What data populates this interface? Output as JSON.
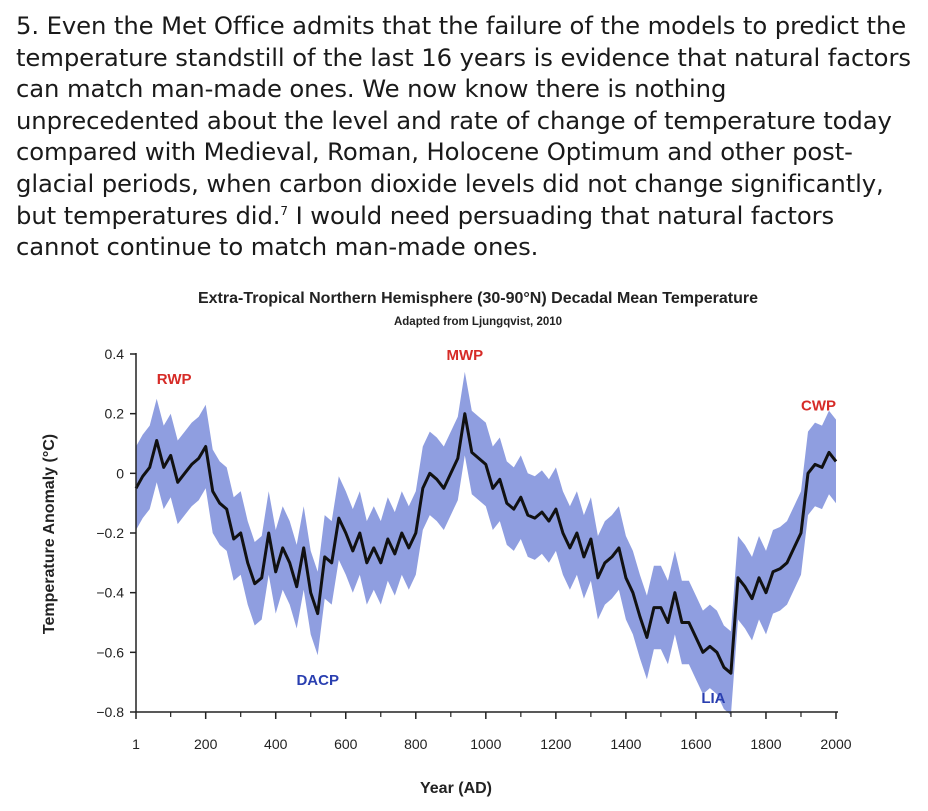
{
  "paragraph": {
    "number": "5.",
    "text_before_note": "Even the Met Office admits that the failure of the models to predict the temperature standstill of the last 16 years is evidence that natural factors can match man-made ones. We now know there is nothing unprecedented about the level and rate of change of temperature today compared with Medieval, Roman, Holocene Optimum and other post-glacial periods, when carbon dioxide levels did not change significantly, but temperatures did.",
    "footnote": "7",
    "text_after_note": " I would need persuading that natural factors cannot continue to match man-made ones."
  },
  "chart_data": {
    "type": "area",
    "title": "Extra-Tropical Northern Hemisphere (30-90°N) Decadal Mean Temperature",
    "subtitle": "Adapted from Ljungqvist, 2010",
    "xlabel": "Year (AD)",
    "ylabel": "Temperature Anomaly (°C)",
    "xlim": [
      1,
      2000
    ],
    "ylim": [
      -0.8,
      0.4
    ],
    "x_ticks": [
      1,
      200,
      400,
      600,
      800,
      1000,
      1200,
      1400,
      1600,
      1800,
      2000
    ],
    "x_tick_labels": [
      "1",
      "200",
      "400",
      "600",
      "800",
      "1000",
      "1200",
      "1400",
      "1600",
      "1800",
      "2000"
    ],
    "y_ticks": [
      -0.8,
      -0.6,
      -0.4,
      -0.2,
      0,
      0.2,
      0.4
    ],
    "y_tick_labels": [
      "−0.8",
      "−0.6",
      "−0.4",
      "−0.2",
      "0",
      "0.2",
      "0.4"
    ],
    "colors": {
      "line": "#111111",
      "band": "#8f9ee0",
      "warm_label": "#d62b27",
      "cool_label": "#2a3fb0"
    },
    "annotations": [
      {
        "text": "RWP",
        "x": 110,
        "y": 0.3,
        "color": "red"
      },
      {
        "text": "DACP",
        "x": 520,
        "y": -0.71,
        "color": "blue"
      },
      {
        "text": "MWP",
        "x": 940,
        "y": 0.38,
        "color": "red"
      },
      {
        "text": "LIA",
        "x": 1650,
        "y": -0.77,
        "color": "blue"
      },
      {
        "text": "CWP",
        "x": 1950,
        "y": 0.21,
        "color": "red"
      }
    ],
    "series": [
      {
        "name": "Decadal mean temperature",
        "x": [
          1,
          20,
          40,
          60,
          80,
          100,
          120,
          140,
          160,
          180,
          200,
          220,
          240,
          260,
          280,
          300,
          320,
          340,
          360,
          380,
          400,
          420,
          440,
          460,
          480,
          500,
          520,
          540,
          560,
          580,
          600,
          620,
          640,
          660,
          680,
          700,
          720,
          740,
          760,
          780,
          800,
          820,
          840,
          860,
          880,
          900,
          920,
          940,
          960,
          980,
          1000,
          1020,
          1040,
          1060,
          1080,
          1100,
          1120,
          1140,
          1160,
          1180,
          1200,
          1220,
          1240,
          1260,
          1280,
          1300,
          1320,
          1340,
          1360,
          1380,
          1400,
          1420,
          1440,
          1460,
          1480,
          1500,
          1520,
          1540,
          1560,
          1580,
          1600,
          1620,
          1640,
          1660,
          1680,
          1700,
          1720,
          1740,
          1760,
          1780,
          1800,
          1820,
          1840,
          1860,
          1880,
          1900,
          1920,
          1940,
          1960,
          1980,
          2000
        ],
        "values": [
          -0.05,
          -0.01,
          0.02,
          0.11,
          0.02,
          0.06,
          -0.03,
          0.0,
          0.03,
          0.05,
          0.09,
          -0.06,
          -0.1,
          -0.12,
          -0.22,
          -0.2,
          -0.3,
          -0.37,
          -0.35,
          -0.2,
          -0.33,
          -0.25,
          -0.3,
          -0.38,
          -0.25,
          -0.4,
          -0.47,
          -0.28,
          -0.3,
          -0.15,
          -0.2,
          -0.26,
          -0.2,
          -0.3,
          -0.25,
          -0.3,
          -0.22,
          -0.27,
          -0.2,
          -0.25,
          -0.2,
          -0.05,
          0.0,
          -0.02,
          -0.05,
          0.0,
          0.05,
          0.2,
          0.07,
          0.05,
          0.03,
          -0.05,
          -0.02,
          -0.1,
          -0.12,
          -0.08,
          -0.14,
          -0.15,
          -0.13,
          -0.16,
          -0.12,
          -0.2,
          -0.25,
          -0.2,
          -0.28,
          -0.22,
          -0.35,
          -0.3,
          -0.28,
          -0.25,
          -0.35,
          -0.4,
          -0.48,
          -0.55,
          -0.45,
          -0.45,
          -0.5,
          -0.4,
          -0.5,
          -0.5,
          -0.55,
          -0.6,
          -0.58,
          -0.6,
          -0.65,
          -0.67,
          -0.35,
          -0.38,
          -0.42,
          -0.35,
          -0.4,
          -0.33,
          -0.32,
          -0.3,
          -0.25,
          -0.2,
          0.0,
          0.03,
          0.02,
          0.07,
          0.04
        ]
      }
    ],
    "uncertainty_band": {
      "lower": [
        -0.19,
        -0.15,
        -0.12,
        -0.03,
        -0.12,
        -0.08,
        -0.17,
        -0.14,
        -0.11,
        -0.09,
        -0.05,
        -0.2,
        -0.24,
        -0.26,
        -0.36,
        -0.34,
        -0.44,
        -0.51,
        -0.49,
        -0.34,
        -0.47,
        -0.39,
        -0.44,
        -0.52,
        -0.39,
        -0.54,
        -0.61,
        -0.42,
        -0.44,
        -0.29,
        -0.34,
        -0.4,
        -0.34,
        -0.44,
        -0.39,
        -0.44,
        -0.36,
        -0.41,
        -0.34,
        -0.39,
        -0.34,
        -0.19,
        -0.14,
        -0.16,
        -0.19,
        -0.14,
        -0.09,
        0.06,
        -0.07,
        -0.09,
        -0.11,
        -0.19,
        -0.16,
        -0.24,
        -0.26,
        -0.22,
        -0.28,
        -0.29,
        -0.27,
        -0.3,
        -0.26,
        -0.34,
        -0.39,
        -0.34,
        -0.42,
        -0.36,
        -0.49,
        -0.44,
        -0.42,
        -0.39,
        -0.49,
        -0.54,
        -0.62,
        -0.69,
        -0.59,
        -0.59,
        -0.64,
        -0.54,
        -0.64,
        -0.64,
        -0.69,
        -0.74,
        -0.72,
        -0.74,
        -0.79,
        -0.81,
        -0.49,
        -0.52,
        -0.56,
        -0.49,
        -0.54,
        -0.47,
        -0.46,
        -0.44,
        -0.39,
        -0.34,
        -0.14,
        -0.11,
        -0.12,
        -0.07,
        -0.1
      ],
      "upper": [
        0.09,
        0.13,
        0.16,
        0.25,
        0.16,
        0.2,
        0.11,
        0.14,
        0.17,
        0.19,
        0.23,
        0.08,
        0.04,
        0.02,
        -0.08,
        -0.06,
        -0.16,
        -0.23,
        -0.21,
        -0.06,
        -0.19,
        -0.11,
        -0.16,
        -0.24,
        -0.11,
        -0.26,
        -0.33,
        -0.14,
        -0.16,
        -0.01,
        -0.06,
        -0.12,
        -0.06,
        -0.16,
        -0.11,
        -0.16,
        -0.08,
        -0.13,
        -0.06,
        -0.11,
        -0.06,
        0.09,
        0.14,
        0.12,
        0.09,
        0.14,
        0.19,
        0.34,
        0.21,
        0.19,
        0.17,
        0.09,
        0.12,
        0.04,
        0.02,
        0.06,
        0.0,
        -0.01,
        0.01,
        -0.02,
        0.02,
        -0.06,
        -0.11,
        -0.06,
        -0.14,
        -0.08,
        -0.21,
        -0.16,
        -0.14,
        -0.11,
        -0.21,
        -0.26,
        -0.34,
        -0.41,
        -0.31,
        -0.31,
        -0.36,
        -0.26,
        -0.36,
        -0.36,
        -0.41,
        -0.46,
        -0.44,
        -0.46,
        -0.51,
        -0.53,
        -0.21,
        -0.24,
        -0.28,
        -0.21,
        -0.26,
        -0.19,
        -0.18,
        -0.16,
        -0.11,
        -0.06,
        0.14,
        0.17,
        0.16,
        0.21,
        0.18
      ]
    }
  }
}
